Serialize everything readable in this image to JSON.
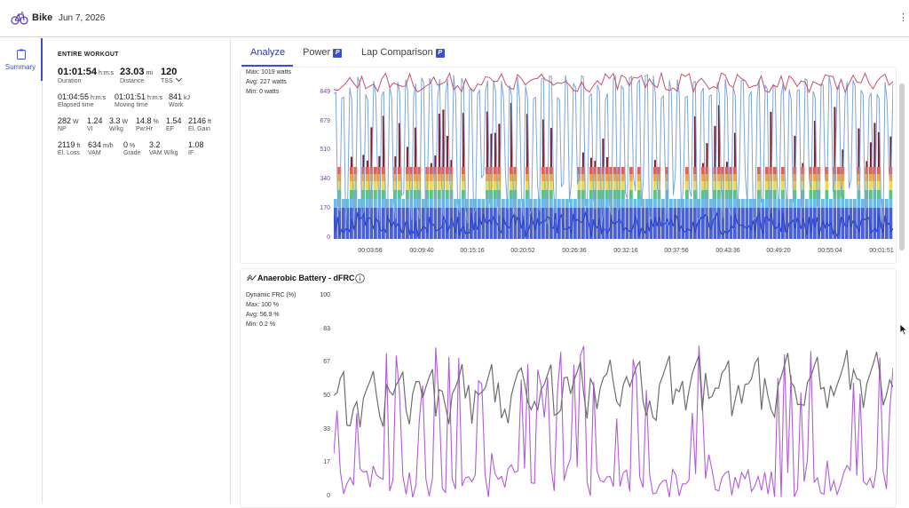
{
  "header": {
    "title": "Bike",
    "date": "Jun 7, 2026",
    "icon": "bike-icon",
    "menu_icon": "kebab-icon"
  },
  "leftnav": {
    "items": [
      {
        "label": "Summary",
        "icon": "clipboard-icon"
      }
    ]
  },
  "summary": {
    "section_title": "ENTIRE WORKOUT",
    "primary": [
      {
        "value": "01:01:54",
        "unit": "h:m:s",
        "label": "Duration"
      },
      {
        "value": "23.03",
        "unit": "mi",
        "label": "Distance"
      },
      {
        "value": "120",
        "unit": "",
        "label": "TSS"
      }
    ],
    "rows": [
      [
        {
          "value": "01:04:55",
          "unit": "h:m:s",
          "label": "Elapsed time"
        },
        {
          "value": "01:01:51",
          "unit": "h:m:s",
          "label": "Moving time"
        },
        {
          "value": "841",
          "unit": "kJ",
          "label": "Work"
        }
      ],
      [
        {
          "value": "282",
          "unit": "W",
          "label": "NP"
        },
        {
          "value": "1.24",
          "unit": "",
          "label": "VI"
        },
        {
          "value": "3.3",
          "unit": "W",
          "label": "W/kg"
        },
        {
          "value": "14.8",
          "unit": "%",
          "label": "Pw:Hr"
        },
        {
          "value": "1.54",
          "unit": "",
          "label": "EF"
        },
        {
          "value": "2146",
          "unit": "ft",
          "label": "El. Gain"
        }
      ],
      [
        {
          "value": "2119",
          "unit": "ft",
          "label": "El. Loss"
        },
        {
          "value": "634",
          "unit": "m/h",
          "label": "VAM"
        },
        {
          "value": "0",
          "unit": "%",
          "label": "Grade"
        },
        {
          "value": "3.2",
          "unit": "",
          "label": "VAM W/kg"
        },
        {
          "value": "1.08",
          "unit": "",
          "label": "IF"
        }
      ]
    ]
  },
  "tabs": [
    {
      "label": "Analyze",
      "active": true,
      "badge": ""
    },
    {
      "label": "Power",
      "active": false,
      "badge": "P"
    },
    {
      "label": "Lap Comparison",
      "active": false,
      "badge": "P"
    }
  ],
  "power_chart": {
    "stats": [
      "Max: 1019 watts",
      "Avg: 227 watts",
      "Min: 0 watts"
    ],
    "yticks": [
      "849",
      "679",
      "510",
      "340",
      "170",
      "0"
    ],
    "xticks": [
      "00:03:56",
      "00:09:40",
      "00:15:16",
      "00:20:52",
      "00:26:36",
      "00:32:16",
      "00:37:56",
      "00:43:36",
      "00:49:20",
      "00:55:04",
      "00:01:51"
    ]
  },
  "battery_chart": {
    "title": "Anaerobic Battery - dFRC",
    "icon": "trend-icon",
    "info_icon": "info-icon",
    "stats": [
      "Dynamic FRC (%)",
      "Max: 100 %",
      "Avg: 56.9 %",
      "Min: 0.2 %"
    ],
    "yticks": [
      "100",
      "83",
      "67",
      "50",
      "33",
      "17",
      "0"
    ]
  },
  "colors": {
    "accent": "#3d4fd1",
    "power_blue": "#2b45c9",
    "hr_pink": "#c9506e",
    "maroon": "#7a1a32",
    "light_blue": "#7ea6d8",
    "frc_gray": "#6e6e6e",
    "frc_purple": "#b25cd9"
  }
}
